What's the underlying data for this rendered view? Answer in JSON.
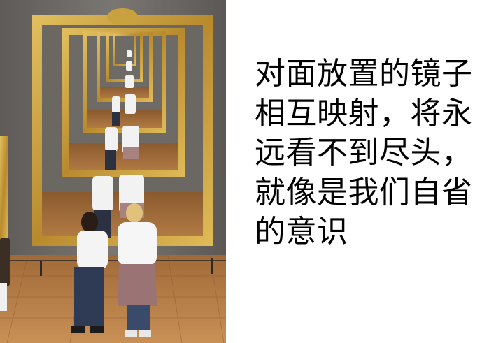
{
  "photo": {
    "description_icon": "mirror-gallery-photo"
  },
  "caption": {
    "lines": [
      "对面放置的镜子",
      "相互映射，将永",
      "远看不到尽头，",
      "就像是我们自省",
      "的意识"
    ]
  },
  "colors": {
    "wall": "#6e6a66",
    "floor": "#b5804a",
    "frame_gold": "#c9a23f",
    "text": "#000000",
    "background": "#ffffff"
  }
}
